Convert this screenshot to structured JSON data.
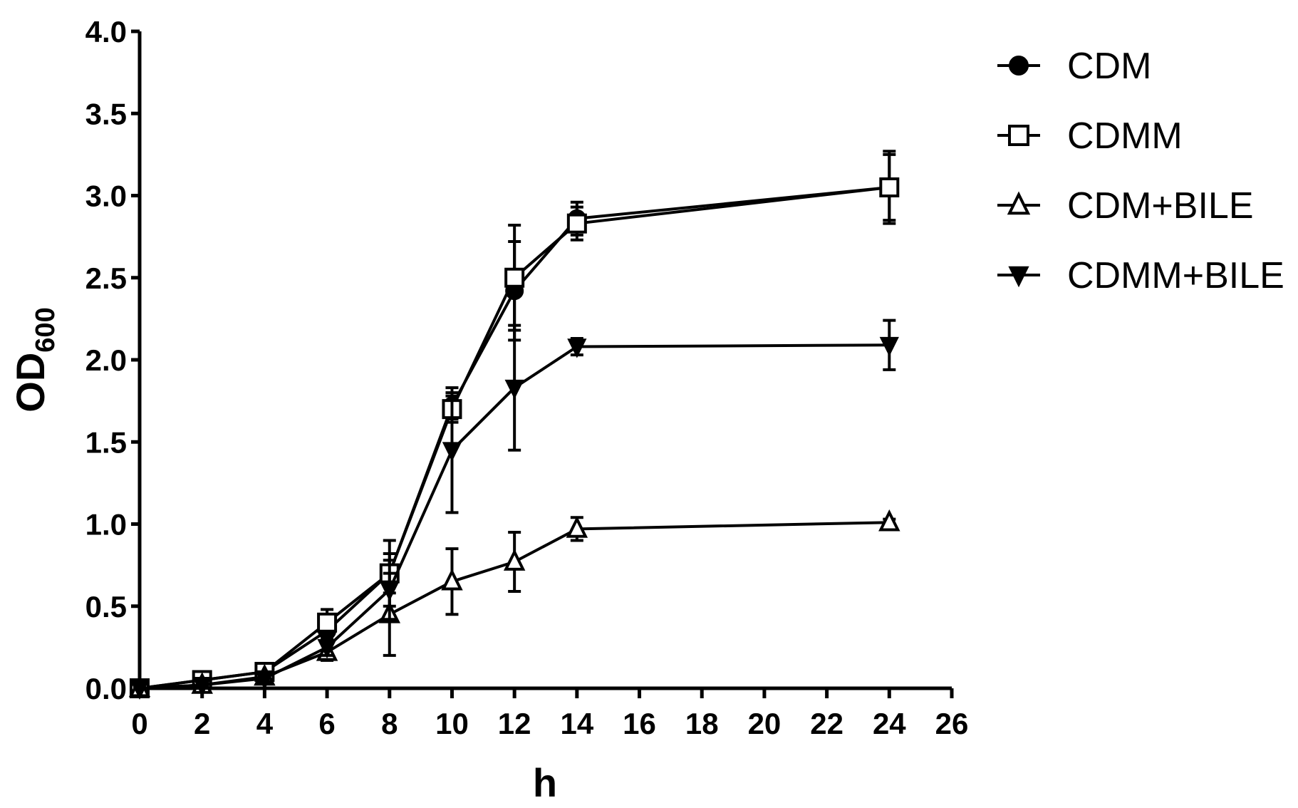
{
  "chart_data": {
    "type": "line",
    "x": [
      0,
      2,
      4,
      6,
      8,
      10,
      12,
      14,
      24
    ],
    "xlabel": "h",
    "ylabel_main": "OD",
    "ylabel_sub": "600",
    "xlim": [
      0,
      26
    ],
    "ylim": [
      0,
      4
    ],
    "xticks": [
      0,
      2,
      4,
      6,
      8,
      10,
      12,
      14,
      16,
      18,
      20,
      22,
      24,
      26
    ],
    "yticks": [
      0.0,
      0.5,
      1.0,
      1.5,
      2.0,
      2.5,
      3.0,
      3.5,
      4.0
    ],
    "ytick_labels": [
      "0.0",
      "0.5",
      "1.0",
      "1.5",
      "2.0",
      "2.5",
      "3.0",
      "3.5",
      "4.0"
    ],
    "grid": false,
    "legend_position": "top-right",
    "series": [
      {
        "name": "CDM",
        "marker": "filled-circle",
        "values": [
          0.0,
          0.05,
          0.1,
          0.35,
          0.7,
          1.72,
          2.42,
          2.86,
          3.05
        ],
        "errors": [
          0.02,
          0.02,
          0.02,
          0.08,
          0.12,
          0.08,
          0.3,
          0.1,
          0.2
        ]
      },
      {
        "name": "CDMM",
        "marker": "open-square",
        "values": [
          0.0,
          0.05,
          0.1,
          0.4,
          0.7,
          1.7,
          2.5,
          2.83,
          3.05
        ],
        "errors": [
          0.02,
          0.02,
          0.02,
          0.08,
          0.2,
          0.08,
          0.32,
          0.1,
          0.22
        ]
      },
      {
        "name": "CDM+BILE",
        "marker": "open-triangle-up",
        "values": [
          0.0,
          0.02,
          0.07,
          0.22,
          0.45,
          0.65,
          0.77,
          0.97,
          1.01
        ],
        "errors": [
          0.02,
          0.02,
          0.02,
          0.05,
          0.25,
          0.2,
          0.18,
          0.07,
          0.02
        ]
      },
      {
        "name": "CDMM+BILE",
        "marker": "filled-triangle-down",
        "values": [
          0.0,
          0.02,
          0.06,
          0.25,
          0.6,
          1.45,
          1.83,
          2.08,
          2.09
        ],
        "errors": [
          0.02,
          0.02,
          0.02,
          0.05,
          0.18,
          0.38,
          0.38,
          0.05,
          0.15
        ]
      }
    ]
  }
}
